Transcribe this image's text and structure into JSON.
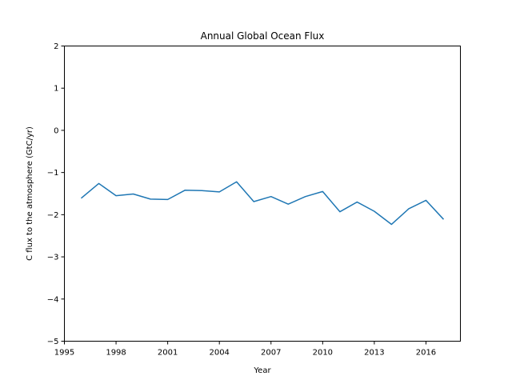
{
  "chart_data": {
    "type": "line",
    "title": "Annual Global Ocean Flux",
    "xlabel": "Year",
    "ylabel": "C flux to the atmosphere (GtC/yr)",
    "xlim": [
      1995,
      2018
    ],
    "ylim": [
      -5,
      2
    ],
    "xticks": [
      1995,
      1998,
      2001,
      2004,
      2007,
      2010,
      2013,
      2016
    ],
    "yticks": [
      -5,
      -4,
      -3,
      -2,
      -1,
      0,
      1,
      2
    ],
    "xtick_labels": [
      "1995",
      "1998",
      "2001",
      "2004",
      "2007",
      "2010",
      "2013",
      "2016"
    ],
    "ytick_labels": [
      "−5",
      "−4",
      "−3",
      "−2",
      "−1",
      "0",
      "1",
      "2"
    ],
    "grid": false,
    "series": [
      {
        "color": "#1f77b4",
        "x": [
          1996,
          1997,
          1998,
          1999,
          2000,
          2001,
          2002,
          2003,
          2004,
          2005,
          2006,
          2007,
          2008,
          2009,
          2010,
          2011,
          2012,
          2013,
          2014,
          2015,
          2016,
          2017
        ],
        "y": [
          -1.6,
          -1.26,
          -1.55,
          -1.51,
          -1.63,
          -1.64,
          -1.42,
          -1.43,
          -1.46,
          -1.22,
          -1.69,
          -1.57,
          -1.75,
          -1.57,
          -1.45,
          -1.93,
          -1.7,
          -1.92,
          -2.23,
          -1.86,
          -1.66,
          -2.1
        ]
      }
    ]
  }
}
